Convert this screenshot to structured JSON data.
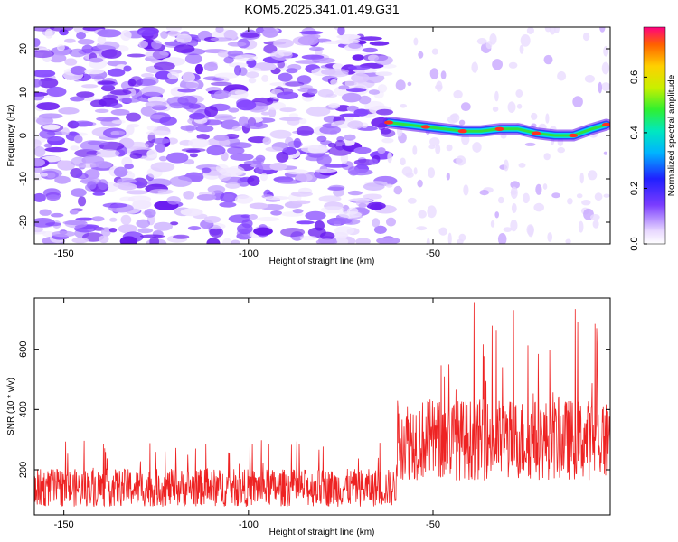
{
  "title": "KOM5.2025.341.01.49.G31",
  "chart_data": [
    {
      "type": "heatmap",
      "name": "spectrogram",
      "xlabel": "Height of straight line (km)",
      "ylabel": "Frequency (Hz)",
      "xlim": [
        -158,
        -2
      ],
      "ylim": [
        -25,
        25
      ],
      "xticks": [
        -150,
        -100,
        -50
      ],
      "xtick_labels": [
        "-150",
        "-100",
        "-50"
      ],
      "yticks": [
        20,
        10,
        0,
        -10,
        -20
      ],
      "ytick_labels": [
        "20",
        "10",
        "0",
        "-10",
        "-20"
      ],
      "onset_height_km": -62,
      "signal_ridge": [
        {
          "x": -62,
          "f": 3.0
        },
        {
          "x": -57,
          "f": 2.5
        },
        {
          "x": -52,
          "f": 2.0
        },
        {
          "x": -47,
          "f": 1.5
        },
        {
          "x": -42,
          "f": 1.0
        },
        {
          "x": -37,
          "f": 1.0
        },
        {
          "x": -32,
          "f": 1.5
        },
        {
          "x": -27,
          "f": 1.5
        },
        {
          "x": -22,
          "f": 0.5
        },
        {
          "x": -17,
          "f": 0.0
        },
        {
          "x": -12,
          "f": 0.0
        },
        {
          "x": -7,
          "f": 1.5
        },
        {
          "x": -3,
          "f": 2.5
        }
      ],
      "colorbar": {
        "label": "Normalized spectral amplitude",
        "range": [
          0.0,
          0.78
        ],
        "ticks": [
          0.0,
          0.2,
          0.4,
          0.6
        ],
        "tick_labels": [
          "0.0",
          "0.2",
          "0.4",
          "0.6"
        ]
      }
    },
    {
      "type": "line",
      "name": "snr",
      "xlabel": "Height of straight line (km)",
      "ylabel": "SNR (10 * v/v)",
      "xlim": [
        -158,
        -2
      ],
      "ylim": [
        50,
        770
      ],
      "xticks": [
        -150,
        -100,
        -50
      ],
      "xtick_labels": [
        "-150",
        "-100",
        "-50"
      ],
      "yticks": [
        200,
        400,
        600
      ],
      "ytick_labels": [
        "200",
        "400",
        "600"
      ],
      "color": "#ee2222",
      "series": [
        {
          "name": "SNR",
          "segments": [
            {
              "x_from": -158,
              "x_to": -60,
              "mean": 140,
              "max": 300
            },
            {
              "x_from": -60,
              "x_to": -2,
              "mean": 300,
              "max": 760
            }
          ]
        }
      ]
    }
  ]
}
